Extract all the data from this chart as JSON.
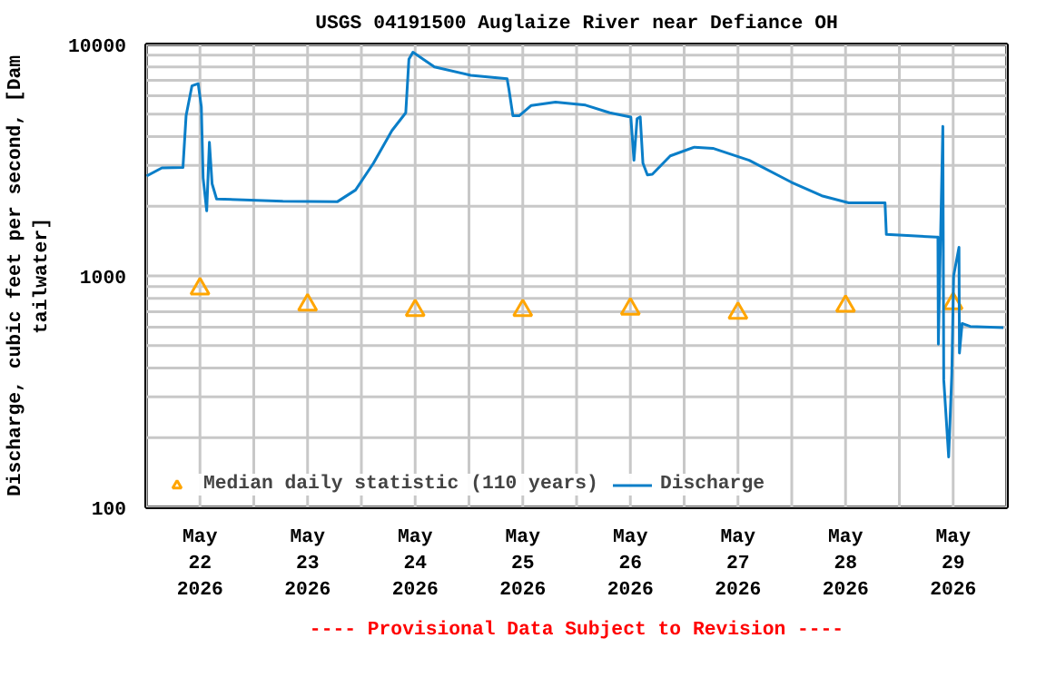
{
  "chart_data": {
    "type": "line",
    "title": "USGS 04191500 Auglaize River near Defiance OH",
    "ylabel": "Discharge, cubic feet per second, [Dam tailwater]",
    "annotations": [
      "---- Provisional Data Subject to Revision ----"
    ],
    "series": [
      {
        "name": "Median daily statistic (110 years)",
        "type": "scatter",
        "marker": "triangle",
        "color": "#ffa500",
        "x": [
          "2026-05-22T12:00",
          "2026-05-23T12:00",
          "2026-05-24T12:00",
          "2026-05-25T12:00",
          "2026-05-26T12:00",
          "2026-05-27T12:00",
          "2026-05-28T12:00",
          "2026-05-29T12:00"
        ],
        "values": [
          880,
          750,
          710,
          710,
          720,
          690,
          740,
          760
        ]
      },
      {
        "name": "Discharge",
        "color": "#0a7ec8",
        "x": [
          "2026-05-22T00:06",
          "2026-05-22T03:30",
          "2026-05-22T08:12",
          "2026-05-22T08:54",
          "2026-05-22T10:12",
          "2026-05-22T11:36",
          "2026-05-22T12:18",
          "2026-05-22T12:42",
          "2026-05-22T13:30",
          "2026-05-22T14:06",
          "2026-05-22T14:42",
          "2026-05-22T15:42",
          "2026-05-23T06:30",
          "2026-05-23T18:36",
          "2026-05-23T22:42",
          "2026-05-24T02:42",
          "2026-05-24T06:48",
          "2026-05-24T09:54",
          "2026-05-24T10:36",
          "2026-05-24T11:30",
          "2026-05-24T16:18",
          "2026-05-25T00:24",
          "2026-05-25T08:30",
          "2026-05-25T08:54",
          "2026-05-25T09:48",
          "2026-05-25T11:12",
          "2026-05-25T13:54",
          "2026-05-25T19:18",
          "2026-05-26T02:00",
          "2026-05-26T07:24",
          "2026-05-26T12:06",
          "2026-05-26T12:48",
          "2026-05-26T13:30",
          "2026-05-26T14:12",
          "2026-05-26T14:48",
          "2026-05-26T15:48",
          "2026-05-26T16:54",
          "2026-05-26T20:54",
          "2026-05-27T02:18",
          "2026-05-27T06:24",
          "2026-05-27T14:30",
          "2026-05-27T23:54",
          "2026-05-28T06:42",
          "2026-05-28T12:42",
          "2026-05-28T20:48",
          "2026-05-28T21:06",
          "2026-05-29T08:18",
          "2026-05-29T08:36",
          "2026-05-29T08:42",
          "2026-05-29T09:42",
          "2026-05-29T09:54",
          "2026-05-29T11:00",
          "2026-05-29T11:42",
          "2026-05-29T12:06",
          "2026-05-29T13:18",
          "2026-05-29T13:24",
          "2026-05-29T14:00",
          "2026-05-29T15:48",
          "2026-05-29T23:12"
        ],
        "values": [
          2700,
          2930,
          2940,
          4920,
          6620,
          6770,
          5380,
          2650,
          1910,
          3780,
          2500,
          2150,
          2100,
          2090,
          2350,
          3070,
          4240,
          5070,
          8630,
          9260,
          8000,
          7360,
          7110,
          6430,
          4920,
          4920,
          5450,
          5640,
          5470,
          5070,
          4860,
          3160,
          4780,
          4860,
          3070,
          2730,
          2750,
          3300,
          3600,
          3560,
          3160,
          2540,
          2220,
          2070,
          2070,
          1510,
          1470,
          1470,
          507,
          4430,
          356,
          165,
          378,
          1000,
          1330,
          464,
          623,
          605,
          598
        ]
      }
    ],
    "log": "y",
    "grid": true,
    "legend": "bottom left",
    "line_style": "solid",
    "xlim": [
      "2026-05-22T00:00",
      "2026-05-30T00:00"
    ],
    "xticks": [
      {
        "value": "2026-05-22T00:00",
        "label": null
      },
      {
        "value": "2026-05-22T12:00",
        "label": "May\n22\n2026"
      },
      {
        "value": "2026-05-23T00:00",
        "label": null
      },
      {
        "value": "2026-05-23T12:00",
        "label": "May\n23\n2026"
      },
      {
        "value": "2026-05-24T00:00",
        "label": null
      },
      {
        "value": "2026-05-24T12:00",
        "label": "May\n24\n2026"
      },
      {
        "value": "2026-05-25T00:00",
        "label": null
      },
      {
        "value": "2026-05-25T12:00",
        "label": "May\n25\n2026"
      },
      {
        "value": "2026-05-26T00:00",
        "label": null
      },
      {
        "value": "2026-05-26T12:00",
        "label": "May\n26\n2026"
      },
      {
        "value": "2026-05-27T00:00",
        "label": null
      },
      {
        "value": "2026-05-27T12:00",
        "label": "May\n27\n2026"
      },
      {
        "value": "2026-05-28T00:00",
        "label": null
      },
      {
        "value": "2026-05-28T12:00",
        "label": "May\n28\n2026"
      },
      {
        "value": "2026-05-29T00:00",
        "label": null
      },
      {
        "value": "2026-05-29T12:00",
        "label": "May\n29\n2026"
      },
      {
        "value": "2026-05-30T00:00",
        "label": null
      }
    ],
    "ylim": [
      100,
      10000
    ],
    "yticks": [
      100,
      {
        "value": 200,
        "label": null
      },
      {
        "value": 300,
        "label": null
      },
      {
        "value": 400,
        "label": null
      },
      {
        "value": 500,
        "label": null
      },
      {
        "value": 600,
        "label": null
      },
      {
        "value": 700,
        "label": null
      },
      {
        "value": 800,
        "label": null
      },
      {
        "value": 900,
        "label": null
      },
      1000,
      {
        "value": 2000,
        "label": null
      },
      {
        "value": 3000,
        "label": null
      },
      {
        "value": 4000,
        "label": null
      },
      {
        "value": 5000,
        "label": null
      },
      {
        "value": 6000,
        "label": null
      },
      {
        "value": 7000,
        "label": null
      },
      {
        "value": 8000,
        "label": null
      },
      {
        "value": 9000,
        "label": null
      },
      10000
    ]
  }
}
